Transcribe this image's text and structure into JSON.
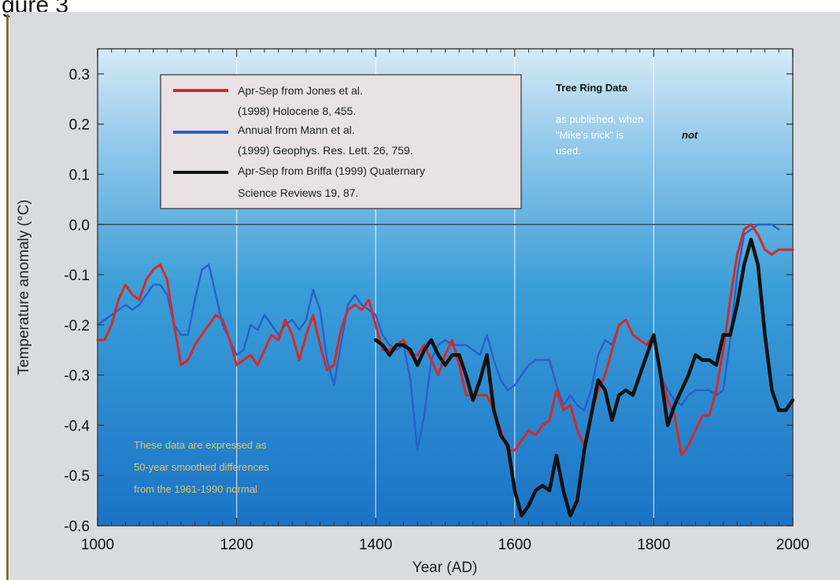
{
  "page": {
    "caption": "gure 3"
  },
  "chart_data": {
    "type": "line",
    "xlabel": "Year (AD)",
    "ylabel": "Temperature anomaly (°C)",
    "xlim": [
      1000,
      2000
    ],
    "ylim": [
      -0.6,
      0.35
    ],
    "xticks": [
      1000,
      1200,
      1400,
      1600,
      1800,
      2000
    ],
    "yticks": [
      0.3,
      0.2,
      0.1,
      0.0,
      -0.1,
      -0.2,
      -0.3,
      -0.4,
      -0.5,
      -0.6
    ],
    "ytick_labels": [
      "0.3",
      "0.2",
      "0.1",
      "0.0",
      "-0.1",
      "-0.2",
      "-0.3",
      "-0.4",
      "-0.5",
      "-0.6"
    ],
    "grid": "vertical white lines at 1200, 1400, 1600, 1800",
    "zero_line": true,
    "legend_placement": "top-left",
    "series": [
      {
        "name": "Apr-Sep from Jones et al. (1998) Holocene 8, 455.",
        "legend_lines": [
          "Apr-Sep from Jones et al.",
          "(1998) Holocene 8, 455."
        ],
        "color": "#d42a2a",
        "x": [
          1000,
          1010,
          1020,
          1030,
          1040,
          1050,
          1060,
          1070,
          1080,
          1090,
          1100,
          1110,
          1120,
          1130,
          1140,
          1150,
          1160,
          1170,
          1180,
          1190,
          1200,
          1210,
          1220,
          1230,
          1240,
          1250,
          1260,
          1270,
          1280,
          1290,
          1300,
          1310,
          1320,
          1330,
          1340,
          1350,
          1360,
          1370,
          1380,
          1390,
          1400,
          1410,
          1420,
          1430,
          1440,
          1450,
          1460,
          1470,
          1480,
          1490,
          1500,
          1510,
          1520,
          1530,
          1540,
          1550,
          1560,
          1570,
          1580,
          1590,
          1600,
          1610,
          1620,
          1630,
          1640,
          1650,
          1660,
          1670,
          1680,
          1690,
          1700,
          1710,
          1720,
          1730,
          1740,
          1750,
          1760,
          1770,
          1780,
          1790,
          1800,
          1810,
          1820,
          1830,
          1840,
          1850,
          1860,
          1870,
          1880,
          1890,
          1900,
          1910,
          1920,
          1930,
          1940,
          1950,
          1960,
          1970,
          1980,
          1990,
          2000
        ],
        "y": [
          -0.23,
          -0.23,
          -0.2,
          -0.15,
          -0.12,
          -0.14,
          -0.15,
          -0.11,
          -0.09,
          -0.08,
          -0.11,
          -0.2,
          -0.28,
          -0.27,
          -0.24,
          -0.22,
          -0.2,
          -0.18,
          -0.19,
          -0.23,
          -0.28,
          -0.27,
          -0.26,
          -0.28,
          -0.25,
          -0.22,
          -0.23,
          -0.19,
          -0.22,
          -0.27,
          -0.22,
          -0.18,
          -0.24,
          -0.29,
          -0.28,
          -0.21,
          -0.17,
          -0.16,
          -0.17,
          -0.15,
          -0.2,
          -0.25,
          -0.25,
          -0.24,
          -0.23,
          -0.26,
          -0.26,
          -0.24,
          -0.27,
          -0.3,
          -0.26,
          -0.23,
          -0.28,
          -0.34,
          -0.34,
          -0.34,
          -0.34,
          -0.37,
          -0.41,
          -0.45,
          -0.45,
          -0.43,
          -0.41,
          -0.42,
          -0.4,
          -0.39,
          -0.33,
          -0.37,
          -0.36,
          -0.41,
          -0.44,
          -0.38,
          -0.33,
          -0.3,
          -0.25,
          -0.2,
          -0.19,
          -0.22,
          -0.23,
          -0.24,
          -0.22,
          -0.3,
          -0.35,
          -0.38,
          -0.46,
          -0.44,
          -0.41,
          -0.38,
          -0.38,
          -0.33,
          -0.25,
          -0.15,
          -0.06,
          -0.01,
          0.0,
          -0.02,
          -0.05,
          -0.06,
          -0.05,
          -0.05,
          -0.05
        ]
      },
      {
        "name": "Annual from Mann et al. (1999) Geophys. Res. Lett. 26, 759.",
        "legend_lines": [
          "Annual from Mann et al.",
          "(1999) Geophys. Res. Lett. 26, 759."
        ],
        "color": "#2a5fc8",
        "x": [
          1000,
          1010,
          1020,
          1030,
          1040,
          1050,
          1060,
          1070,
          1080,
          1090,
          1100,
          1110,
          1120,
          1130,
          1140,
          1150,
          1160,
          1170,
          1180,
          1190,
          1200,
          1210,
          1220,
          1230,
          1240,
          1250,
          1260,
          1270,
          1280,
          1290,
          1300,
          1310,
          1320,
          1330,
          1340,
          1350,
          1360,
          1370,
          1380,
          1390,
          1400,
          1410,
          1420,
          1430,
          1440,
          1450,
          1460,
          1470,
          1480,
          1490,
          1500,
          1510,
          1520,
          1530,
          1540,
          1550,
          1560,
          1570,
          1580,
          1590,
          1600,
          1610,
          1620,
          1630,
          1640,
          1650,
          1660,
          1670,
          1680,
          1690,
          1700,
          1710,
          1720,
          1730,
          1740,
          1750,
          1760,
          1770,
          1780,
          1790,
          1800,
          1810,
          1820,
          1830,
          1840,
          1850,
          1860,
          1870,
          1880,
          1890,
          1900,
          1910,
          1920,
          1930,
          1940,
          1950,
          1960,
          1970,
          1980
        ],
        "y": [
          -0.2,
          -0.19,
          -0.18,
          -0.17,
          -0.16,
          -0.17,
          -0.16,
          -0.14,
          -0.12,
          -0.12,
          -0.14,
          -0.2,
          -0.22,
          -0.22,
          -0.15,
          -0.09,
          -0.08,
          -0.14,
          -0.2,
          -0.23,
          -0.26,
          -0.25,
          -0.2,
          -0.21,
          -0.18,
          -0.2,
          -0.22,
          -0.2,
          -0.19,
          -0.21,
          -0.19,
          -0.13,
          -0.17,
          -0.27,
          -0.32,
          -0.24,
          -0.16,
          -0.14,
          -0.16,
          -0.17,
          -0.18,
          -0.22,
          -0.24,
          -0.25,
          -0.24,
          -0.31,
          -0.45,
          -0.38,
          -0.27,
          -0.24,
          -0.23,
          -0.24,
          -0.24,
          -0.24,
          -0.25,
          -0.26,
          -0.22,
          -0.27,
          -0.31,
          -0.33,
          -0.32,
          -0.3,
          -0.28,
          -0.27,
          -0.27,
          -0.27,
          -0.32,
          -0.36,
          -0.34,
          -0.36,
          -0.37,
          -0.33,
          -0.26,
          -0.23,
          -0.24,
          -0.2,
          -0.19,
          -0.22,
          -0.23,
          -0.24,
          -0.22,
          -0.3,
          -0.33,
          -0.35,
          -0.36,
          -0.34,
          -0.33,
          -0.33,
          -0.33,
          -0.34,
          -0.33,
          -0.23,
          -0.1,
          -0.02,
          -0.01,
          0.0,
          0.0,
          0.0,
          -0.01
        ]
      },
      {
        "name": "Apr-Sep from Briffa (1999) Quaternary Science Reviews 19, 87.",
        "legend_lines": [
          "Apr-Sep from Briffa (1999) Quaternary",
          "Science Reviews 19, 87."
        ],
        "color": "#111111",
        "x": [
          1400,
          1410,
          1420,
          1430,
          1440,
          1450,
          1460,
          1470,
          1480,
          1490,
          1500,
          1510,
          1520,
          1530,
          1540,
          1550,
          1560,
          1570,
          1580,
          1590,
          1600,
          1610,
          1620,
          1630,
          1640,
          1650,
          1660,
          1670,
          1680,
          1690,
          1700,
          1710,
          1720,
          1730,
          1740,
          1750,
          1760,
          1770,
          1780,
          1790,
          1800,
          1810,
          1820,
          1830,
          1840,
          1850,
          1860,
          1870,
          1880,
          1890,
          1900,
          1910,
          1920,
          1930,
          1940,
          1950,
          1960,
          1970,
          1980,
          1990,
          2000
        ],
        "y": [
          -0.23,
          -0.24,
          -0.26,
          -0.24,
          -0.24,
          -0.25,
          -0.28,
          -0.25,
          -0.23,
          -0.26,
          -0.28,
          -0.26,
          -0.26,
          -0.3,
          -0.35,
          -0.31,
          -0.26,
          -0.37,
          -0.42,
          -0.44,
          -0.53,
          -0.58,
          -0.56,
          -0.53,
          -0.52,
          -0.53,
          -0.46,
          -0.53,
          -0.58,
          -0.55,
          -0.45,
          -0.38,
          -0.31,
          -0.33,
          -0.39,
          -0.34,
          -0.33,
          -0.34,
          -0.3,
          -0.26,
          -0.22,
          -0.3,
          -0.4,
          -0.36,
          -0.33,
          -0.3,
          -0.26,
          -0.27,
          -0.27,
          -0.28,
          -0.22,
          -0.22,
          -0.16,
          -0.08,
          -0.03,
          -0.08,
          -0.22,
          -0.33,
          -0.37,
          -0.37,
          -0.35
        ]
      }
    ],
    "annotations": {
      "tree_ring_title": "Tree Ring Data",
      "tree_ring_lines": [
        "as published, when",
        "\"Mike's trick\" is",
        "used."
      ],
      "tree_ring_emphasis": "not",
      "smoothing_note": [
        "These data are expressed as",
        "50-year smoothed differences",
        "from the 1961-1990 normal"
      ]
    }
  }
}
